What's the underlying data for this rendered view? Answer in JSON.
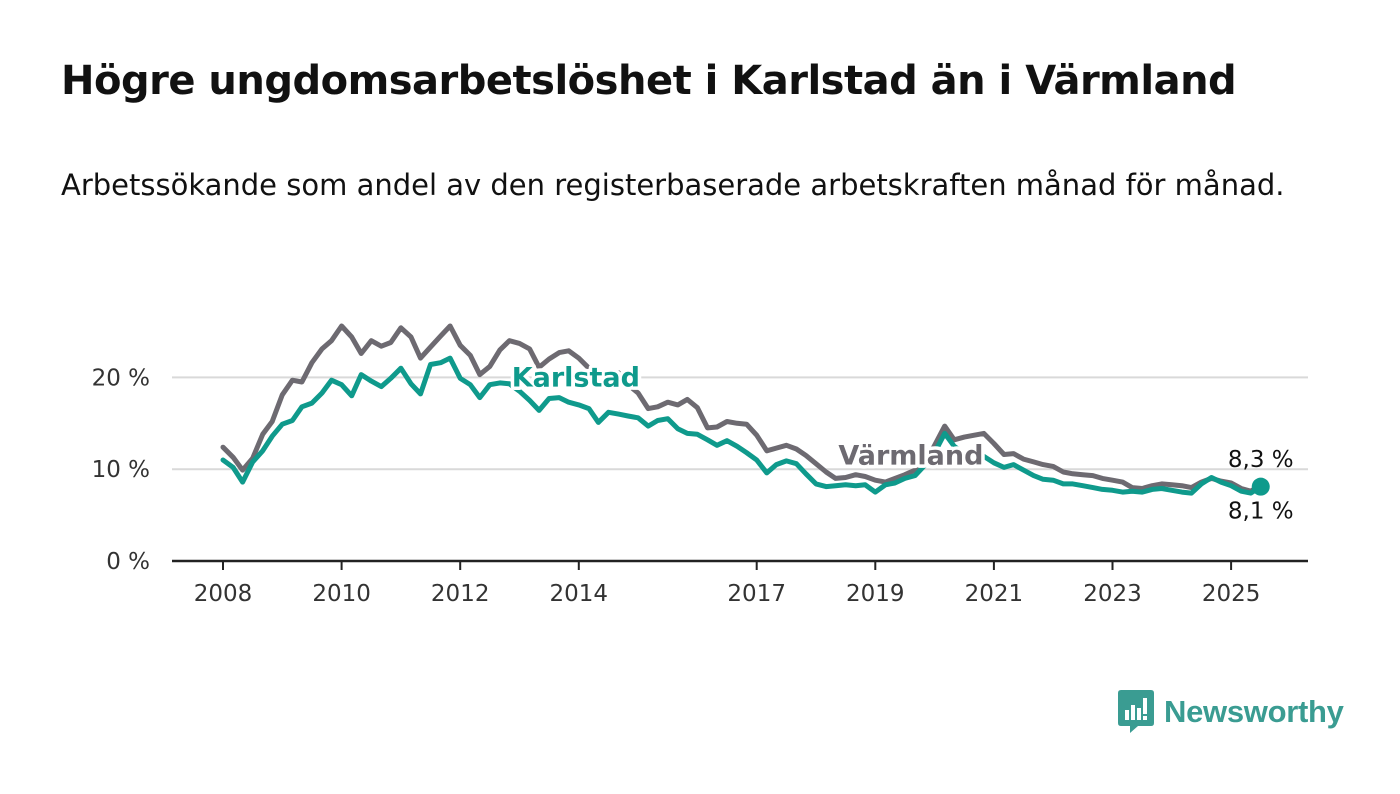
{
  "title": "Högre ungdomsarbetslöshet i Karlstad än i Värmland",
  "subtitle": "Arbetssökande som andel av den registerbaserade arbetskraften månad för månad.",
  "brand": "Newsworthy",
  "colors": {
    "karlstad": "#0f9a8c",
    "varmland": "#6d6a71",
    "grid": "#d9d9d9",
    "axis": "#222222",
    "brand": "#3a9c92"
  },
  "chart_data": {
    "type": "line",
    "x_unit": "year",
    "ylim": [
      0,
      25
    ],
    "y_ticks": [
      0,
      10,
      20
    ],
    "y_tick_labels": [
      "0 %",
      "10 %",
      "20 %"
    ],
    "x_ticks": [
      2008,
      2010,
      2012,
      2014,
      2017,
      2019,
      2021,
      2023,
      2025
    ],
    "x_tick_labels": [
      "2008",
      "2010",
      "2012",
      "2014",
      "2017",
      "2019",
      "2021",
      "2023",
      "2025"
    ],
    "grid": "horizontal",
    "series": [
      {
        "name": "Värmland",
        "color": "#6d6a71",
        "x": [
          2008.0,
          2008.17,
          2008.33,
          2008.5,
          2008.67,
          2008.83,
          2009.0,
          2009.17,
          2009.33,
          2009.5,
          2009.67,
          2009.83,
          2010.0,
          2010.17,
          2010.33,
          2010.5,
          2010.67,
          2010.83,
          2011.0,
          2011.17,
          2011.33,
          2011.5,
          2011.67,
          2011.83,
          2012.0,
          2012.17,
          2012.33,
          2012.5,
          2012.67,
          2012.83,
          2013.0,
          2013.17,
          2013.33,
          2013.5,
          2013.67,
          2013.83,
          2014.0,
          2014.17,
          2014.33,
          2014.5,
          2014.67,
          2014.83,
          2015.0,
          2015.17,
          2015.33,
          2015.5,
          2015.67,
          2015.83,
          2016.0,
          2016.17,
          2016.33,
          2016.5,
          2016.67,
          2016.83,
          2017.0,
          2017.17,
          2017.33,
          2017.5,
          2017.67,
          2017.83,
          2018.0,
          2018.17,
          2018.33,
          2018.5,
          2018.67,
          2018.83,
          2019.0,
          2019.17,
          2019.33,
          2019.5,
          2019.67,
          2019.83,
          2020.0,
          2020.17,
          2020.33,
          2020.5,
          2020.67,
          2020.83,
          2021.0,
          2021.17,
          2021.33,
          2021.5,
          2021.67,
          2021.83,
          2022.0,
          2022.17,
          2022.33,
          2022.5,
          2022.67,
          2022.83,
          2023.0,
          2023.17,
          2023.33,
          2023.5,
          2023.67,
          2023.83,
          2024.0,
          2024.17,
          2024.33,
          2024.5,
          2024.67,
          2024.83,
          2025.0,
          2025.17,
          2025.33,
          2025.5
        ],
        "y": [
          12.4,
          11.3,
          9.9,
          11.2,
          13.8,
          15.2,
          18.1,
          19.7,
          19.5,
          21.6,
          23.1,
          24.0,
          25.6,
          24.4,
          22.6,
          24.0,
          23.4,
          23.8,
          25.4,
          24.4,
          22.1,
          23.3,
          24.5,
          25.6,
          23.5,
          22.4,
          20.3,
          21.2,
          23.0,
          24.0,
          23.7,
          23.1,
          21.1,
          22.0,
          22.7,
          22.9,
          22.1,
          21.0,
          20.4,
          20.6,
          20.5,
          19.2,
          18.3,
          16.6,
          16.8,
          17.3,
          17.0,
          17.6,
          16.7,
          14.5,
          14.6,
          15.2,
          15.0,
          14.9,
          13.7,
          12.0,
          12.3,
          12.6,
          12.2,
          11.5,
          10.6,
          9.7,
          9.0,
          9.1,
          9.4,
          9.2,
          8.8,
          8.6,
          9.0,
          9.4,
          9.9,
          10.6,
          12.6,
          14.7,
          13.2,
          13.5,
          13.7,
          13.9,
          12.8,
          11.6,
          11.7,
          11.1,
          10.8,
          10.5,
          10.3,
          9.7,
          9.5,
          9.4,
          9.3,
          9.0,
          8.8,
          8.6,
          8.0,
          7.9,
          8.2,
          8.4,
          8.3,
          8.2,
          8.0,
          8.6,
          9.0,
          8.7,
          8.5,
          7.9,
          7.6,
          8.3
        ]
      },
      {
        "name": "Karlstad",
        "color": "#0f9a8c",
        "x": [
          2008.0,
          2008.17,
          2008.33,
          2008.5,
          2008.67,
          2008.83,
          2009.0,
          2009.17,
          2009.33,
          2009.5,
          2009.67,
          2009.83,
          2010.0,
          2010.17,
          2010.33,
          2010.5,
          2010.67,
          2010.83,
          2011.0,
          2011.17,
          2011.33,
          2011.5,
          2011.67,
          2011.83,
          2012.0,
          2012.17,
          2012.33,
          2012.5,
          2012.67,
          2012.83,
          2013.0,
          2013.17,
          2013.33,
          2013.5,
          2013.67,
          2013.83,
          2014.0,
          2014.17,
          2014.33,
          2014.5,
          2014.67,
          2014.83,
          2015.0,
          2015.17,
          2015.33,
          2015.5,
          2015.67,
          2015.83,
          2016.0,
          2016.17,
          2016.33,
          2016.5,
          2016.67,
          2016.83,
          2017.0,
          2017.17,
          2017.33,
          2017.5,
          2017.67,
          2017.83,
          2018.0,
          2018.17,
          2018.33,
          2018.5,
          2018.67,
          2018.83,
          2019.0,
          2019.17,
          2019.33,
          2019.5,
          2019.67,
          2019.83,
          2020.0,
          2020.17,
          2020.33,
          2020.5,
          2020.67,
          2020.83,
          2021.0,
          2021.17,
          2021.33,
          2021.5,
          2021.67,
          2021.83,
          2022.0,
          2022.17,
          2022.33,
          2022.5,
          2022.67,
          2022.83,
          2023.0,
          2023.17,
          2023.33,
          2023.5,
          2023.67,
          2023.83,
          2024.0,
          2024.17,
          2024.33,
          2024.5,
          2024.67,
          2024.83,
          2025.0,
          2025.17,
          2025.33,
          2025.5
        ],
        "y": [
          11.0,
          10.2,
          8.6,
          10.8,
          12.0,
          13.6,
          14.9,
          15.3,
          16.8,
          17.2,
          18.3,
          19.7,
          19.2,
          18.0,
          20.3,
          19.6,
          19.0,
          19.9,
          21.0,
          19.3,
          18.2,
          21.4,
          21.6,
          22.1,
          19.9,
          19.2,
          17.8,
          19.2,
          19.4,
          19.3,
          18.5,
          17.5,
          16.4,
          17.7,
          17.8,
          17.3,
          17.0,
          16.6,
          15.1,
          16.2,
          16.0,
          15.8,
          15.6,
          14.7,
          15.3,
          15.5,
          14.4,
          13.9,
          13.8,
          13.2,
          12.6,
          13.1,
          12.5,
          11.8,
          11.0,
          9.6,
          10.5,
          10.9,
          10.6,
          9.5,
          8.4,
          8.1,
          8.2,
          8.3,
          8.2,
          8.3,
          7.5,
          8.3,
          8.5,
          9.0,
          9.3,
          10.4,
          11.8,
          13.9,
          12.5,
          11.7,
          11.8,
          11.4,
          10.7,
          10.2,
          10.5,
          9.9,
          9.3,
          8.9,
          8.8,
          8.4,
          8.4,
          8.2,
          8.0,
          7.8,
          7.7,
          7.5,
          7.6,
          7.5,
          7.8,
          7.9,
          7.7,
          7.5,
          7.4,
          8.4,
          9.1,
          8.6,
          8.2,
          7.6,
          7.4,
          8.1
        ]
      }
    ],
    "series_labels": [
      {
        "series": "Karlstad",
        "text": "Karlstad",
        "x": 2013.95,
        "y": 19.0
      },
      {
        "series": "Värmland",
        "text": "Värmland",
        "x": 2019.6,
        "y": 10.5
      }
    ],
    "end_labels": [
      {
        "series": "Värmland",
        "text": "8,3 %"
      },
      {
        "series": "Karlstad",
        "text": "8,1 %"
      }
    ]
  }
}
